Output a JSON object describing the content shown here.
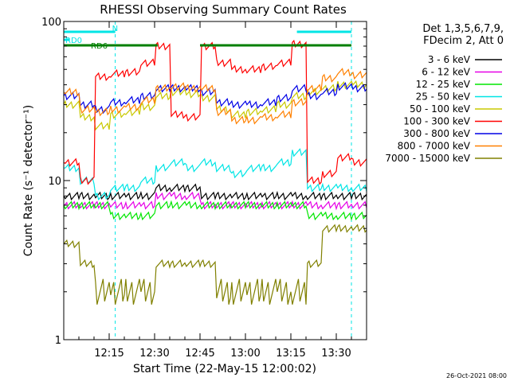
{
  "chart_data": {
    "type": "line",
    "title": "RHESSI Observing Summary Count Rates",
    "xlabel": "Start Time (22-May-15 12:00:02)",
    "ylabel": "Count Rate (s⁻¹ detector⁻¹)",
    "yscale": "log",
    "ylim": [
      1,
      100
    ],
    "xlim": [
      "12:00",
      "13:40"
    ],
    "x_ticks": [
      "12:15",
      "12:30",
      "12:45",
      "13:00",
      "13:15",
      "13:30"
    ],
    "y_ticks": [
      "1",
      "10",
      "100"
    ],
    "legend_header": [
      "Det 1,3,5,6,7,9,",
      "FDecim 2, Att 0"
    ],
    "legend_position": "right",
    "footer": "26-Oct-2021 08:00",
    "annotations": [
      {
        "label": "N",
        "color": "#00e5e5",
        "ranges": [
          [
            "12:00",
            "12:17"
          ],
          [
            "13:17",
            "13:35"
          ]
        ]
      },
      {
        "label": "RD0",
        "color": "#00e5e5",
        "ranges": [
          [
            "12:00",
            "12:02"
          ]
        ]
      },
      {
        "label": "RD6",
        "color": "#007f00",
        "ranges": [
          [
            "12:00",
            "12:31"
          ],
          [
            "12:45",
            "13:20"
          ],
          [
            "13:20",
            "13:35"
          ]
        ]
      }
    ],
    "vlines": [
      {
        "time": "12:17",
        "color": "#00e5e5",
        "style": "dashed"
      },
      {
        "time": "13:35",
        "color": "#00e5e5",
        "style": "dashed"
      }
    ],
    "x": [
      "12:00",
      "12:05",
      "12:10",
      "12:15",
      "12:20",
      "12:25",
      "12:30",
      "12:35",
      "12:40",
      "12:45",
      "12:50",
      "12:55",
      "13:00",
      "13:05",
      "13:10",
      "13:15",
      "13:20",
      "13:25",
      "13:30",
      "13:35"
    ],
    "series": [
      {
        "name": "3 - 6 keV",
        "color": "#000000",
        "values": [
          8,
          8,
          8,
          8,
          8,
          8,
          9,
          9,
          9,
          8,
          8,
          8,
          8,
          8,
          8,
          8,
          8,
          8,
          8,
          8
        ]
      },
      {
        "name": "6 - 12 keV",
        "color": "#e600e6",
        "values": [
          7,
          7,
          7,
          7,
          7,
          7,
          8,
          8,
          8,
          7,
          7,
          7,
          7,
          7,
          7,
          7,
          7,
          7,
          7,
          7
        ]
      },
      {
        "name": "12 - 25 keV",
        "color": "#00e600",
        "values": [
          7,
          7,
          7,
          6,
          6,
          6,
          7,
          7,
          7,
          7,
          7,
          7,
          7,
          7,
          7,
          7,
          6,
          6,
          6,
          6
        ]
      },
      {
        "name": "25 - 50 keV",
        "color": "#00e5e5",
        "values": [
          12,
          10,
          8,
          9,
          9,
          10,
          12,
          13,
          12,
          13,
          12,
          11,
          12,
          12,
          13,
          15,
          9,
          9,
          9,
          9
        ]
      },
      {
        "name": "50 - 100 keV",
        "color": "#c8c800",
        "values": [
          30,
          25,
          22,
          26,
          27,
          29,
          34,
          36,
          35,
          33,
          28,
          26,
          27,
          28,
          30,
          34,
          36,
          38,
          40,
          40
        ]
      },
      {
        "name": "100 - 300 keV",
        "color": "#ff0000",
        "values": [
          13,
          10,
          45,
          47,
          48,
          55,
          70,
          26,
          25,
          70,
          55,
          50,
          50,
          52,
          55,
          72,
          10,
          11,
          14,
          13
        ]
      },
      {
        "name": "300 - 800 keV",
        "color": "#0000e6",
        "values": [
          34,
          30,
          28,
          31,
          32,
          34,
          38,
          38,
          38,
          36,
          31,
          30,
          30,
          31,
          33,
          38,
          34,
          36,
          39,
          38
        ]
      },
      {
        "name": "800 - 7000 keV",
        "color": "#ff8000",
        "values": [
          36,
          28,
          27,
          28,
          29,
          32,
          38,
          39,
          38,
          38,
          27,
          24,
          24,
          25,
          26,
          31,
          38,
          44,
          48,
          46
        ]
      },
      {
        "name": "7000 - 15000 keV",
        "color": "#808000",
        "values": [
          4,
          3,
          2,
          2,
          2,
          2,
          3,
          3,
          3,
          3,
          2,
          2,
          2,
          2,
          2,
          2,
          3,
          5,
          5,
          5
        ]
      }
    ]
  }
}
